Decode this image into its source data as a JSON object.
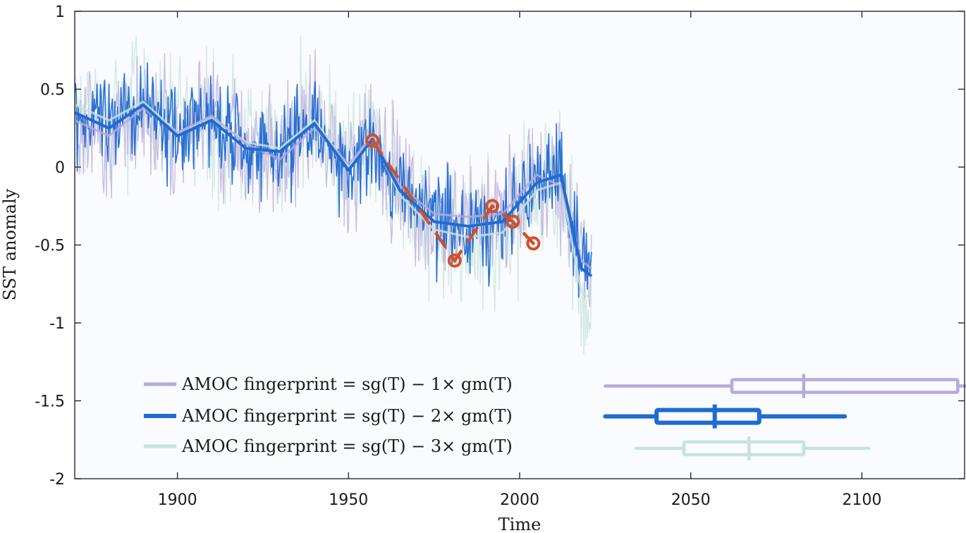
{
  "chart_data": {
    "type": "line",
    "xlabel": "Time",
    "ylabel": "SST anomaly",
    "xlim": [
      1870,
      2130
    ],
    "ylim": [
      -2,
      1
    ],
    "xticks": [
      1900,
      1950,
      2000,
      2050,
      2100
    ],
    "yticks": [
      -2,
      -1.5,
      -1,
      -0.5,
      0,
      0.5,
      1
    ],
    "ytick_labels": [
      "-2",
      "-1.5",
      "-1",
      "-0.5",
      "0",
      "0.5",
      "1"
    ],
    "grid": false,
    "legend_position": "bottom-left",
    "series": [
      {
        "name": "AMOC fingerprint = sg(T) − 1× gm(T)",
        "color": "#b7a9dc",
        "smoothed": {
          "x": [
            1870,
            1880,
            1890,
            1900,
            1910,
            1920,
            1930,
            1940,
            1950,
            1957,
            1965,
            1975,
            1985,
            1995,
            2005,
            2012,
            2018,
            2021
          ],
          "y": [
            0.3,
            0.2,
            0.38,
            0.22,
            0.33,
            0.15,
            0.05,
            0.25,
            0.02,
            0.2,
            -0.12,
            -0.3,
            -0.32,
            -0.3,
            -0.05,
            -0.12,
            -0.6,
            -0.65
          ]
        },
        "box": {
          "low": 2025,
          "q1": 2062,
          "median": 2083,
          "q3": 2128,
          "high": 2130,
          "y": -1.405
        }
      },
      {
        "name": "AMOC fingerprint = sg(T) − 2× gm(T)",
        "color": "#1f6bd1",
        "smoothed": {
          "x": [
            1870,
            1880,
            1890,
            1900,
            1910,
            1920,
            1930,
            1940,
            1950,
            1957,
            1965,
            1975,
            1985,
            1995,
            2005,
            2012,
            2018,
            2021
          ],
          "y": [
            0.35,
            0.25,
            0.4,
            0.2,
            0.3,
            0.12,
            0.1,
            0.28,
            -0.02,
            0.18,
            -0.15,
            -0.35,
            -0.38,
            -0.35,
            -0.1,
            -0.05,
            -0.65,
            -0.7
          ]
        },
        "box": {
          "low": 2025,
          "q1": 2040,
          "median": 2057,
          "q3": 2070,
          "high": 2095,
          "y": -1.6
        }
      },
      {
        "name": "AMOC fingerprint = sg(T) − 3× gm(T)",
        "color": "#c8e3d8",
        "smoothed": {
          "x": [
            1870,
            1880,
            1890,
            1900,
            1910,
            1920,
            1930,
            1940,
            1950,
            1957,
            1965,
            1975,
            1985,
            1995,
            2005,
            2012,
            2018,
            2021
          ],
          "y": [
            0.4,
            0.3,
            0.42,
            0.22,
            0.32,
            0.16,
            0.12,
            0.3,
            0.0,
            0.2,
            -0.18,
            -0.4,
            -0.45,
            -0.42,
            -0.15,
            -0.1,
            -0.8,
            -0.85
          ]
        },
        "box": {
          "low": 2034,
          "q1": 2048,
          "median": 2067,
          "q3": 2083,
          "high": 2102,
          "y": -1.805
        }
      }
    ],
    "markers": {
      "color": "#d2502a",
      "x": [
        1957,
        1981,
        1992,
        1998,
        2004
      ],
      "y": [
        0.17,
        -0.6,
        -0.25,
        -0.35,
        -0.49
      ]
    }
  }
}
